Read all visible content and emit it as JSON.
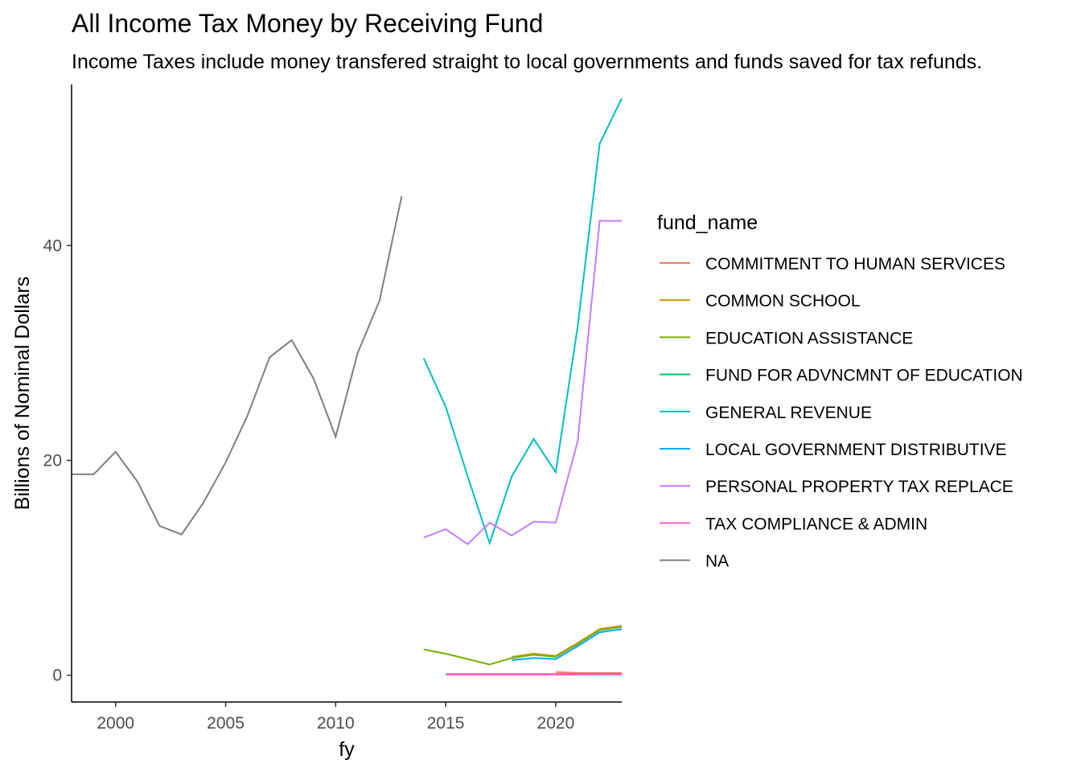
{
  "chart_data": {
    "type": "line",
    "title": "All Income Tax Money by Receiving Fund",
    "subtitle": "Income Taxes include money transfered straight to local governments and funds saved for tax refunds.",
    "xlabel": "fy",
    "ylabel": "Billions of Nominal Dollars",
    "xlim": [
      1998,
      2023
    ],
    "ylim": [
      -2.5,
      55
    ],
    "x_ticks": [
      2000,
      2005,
      2010,
      2015,
      2020
    ],
    "y_ticks": [
      0,
      20,
      40
    ],
    "grid": false,
    "legend_title": "fund_name",
    "legend_position": "right",
    "series": [
      {
        "name": "COMMITMENT TO HUMAN SERVICES",
        "color": "#F8766D",
        "points": [
          [
            2020,
            0.3
          ],
          [
            2021,
            0.2
          ],
          [
            2022,
            0.2
          ],
          [
            2023,
            0.2
          ]
        ]
      },
      {
        "name": "COMMON SCHOOL",
        "color": "#CD9600",
        "points": [
          [
            2018,
            1.7
          ],
          [
            2019,
            2.0
          ],
          [
            2020,
            1.8
          ],
          [
            2021,
            3.0
          ],
          [
            2022,
            4.3
          ],
          [
            2023,
            4.6
          ]
        ]
      },
      {
        "name": "EDUCATION ASSISTANCE",
        "color": "#7CAE00",
        "points": [
          [
            2014,
            2.4
          ],
          [
            2015,
            2.0
          ],
          [
            2016,
            1.5
          ],
          [
            2017,
            1.0
          ],
          [
            2018,
            1.6
          ],
          [
            2019,
            1.9
          ],
          [
            2020,
            1.7
          ],
          [
            2021,
            2.9
          ],
          [
            2022,
            4.2
          ],
          [
            2023,
            4.5
          ]
        ]
      },
      {
        "name": "FUND FOR ADVNCMNT OF EDUCATION",
        "color": "#00BE67",
        "points": [
          [
            2015,
            0.1
          ],
          [
            2016,
            0.1
          ],
          [
            2017,
            0.1
          ],
          [
            2018,
            0.1
          ],
          [
            2019,
            0.1
          ],
          [
            2020,
            0.1
          ],
          [
            2021,
            0.1
          ],
          [
            2022,
            0.1
          ],
          [
            2023,
            0.1
          ]
        ]
      },
      {
        "name": "GENERAL REVENUE",
        "color": "#00BFC4",
        "points": [
          [
            2014,
            29.5
          ],
          [
            2015,
            25.0
          ],
          [
            2016,
            18.5
          ],
          [
            2017,
            12.3
          ],
          [
            2018,
            18.5
          ],
          [
            2019,
            22.0
          ],
          [
            2020,
            18.9
          ],
          [
            2021,
            32.5
          ],
          [
            2022,
            49.5
          ],
          [
            2023,
            53.7
          ]
        ]
      },
      {
        "name": "LOCAL GOVERNMENT DISTRIBUTIVE",
        "color": "#00A9FF",
        "points": [
          [
            2018,
            1.4
          ],
          [
            2019,
            1.6
          ],
          [
            2020,
            1.5
          ],
          [
            2021,
            2.7
          ],
          [
            2022,
            4.0
          ],
          [
            2023,
            4.3
          ]
        ]
      },
      {
        "name": "PERSONAL PROPERTY TAX REPLACE",
        "color": "#C77CFF",
        "points": [
          [
            2014,
            12.8
          ],
          [
            2015,
            13.6
          ],
          [
            2016,
            12.2
          ],
          [
            2017,
            14.2
          ],
          [
            2018,
            13.0
          ],
          [
            2019,
            14.3
          ],
          [
            2020,
            14.2
          ],
          [
            2021,
            21.8
          ],
          [
            2022,
            42.3
          ],
          [
            2023,
            42.3
          ]
        ]
      },
      {
        "name": "TAX COMPLIANCE & ADMIN",
        "color": "#FF61CC",
        "points": [
          [
            2015,
            0.05
          ],
          [
            2016,
            0.05
          ],
          [
            2017,
            0.05
          ],
          [
            2018,
            0.05
          ],
          [
            2019,
            0.05
          ],
          [
            2020,
            0.05
          ],
          [
            2021,
            0.05
          ],
          [
            2022,
            0.05
          ],
          [
            2023,
            0.05
          ]
        ]
      },
      {
        "name": "NA",
        "color": "#7F7F7F",
        "points": [
          [
            1998,
            18.7
          ],
          [
            1999,
            18.7
          ],
          [
            2000,
            20.8
          ],
          [
            2001,
            18.0
          ],
          [
            2002,
            13.9
          ],
          [
            2003,
            13.1
          ],
          [
            2004,
            16.1
          ],
          [
            2005,
            19.8
          ],
          [
            2006,
            24.2
          ],
          [
            2007,
            29.6
          ],
          [
            2008,
            31.2
          ],
          [
            2009,
            27.6
          ],
          [
            2010,
            22.2
          ],
          [
            2011,
            30.0
          ],
          [
            2012,
            34.9
          ],
          [
            2013,
            44.6
          ]
        ]
      }
    ]
  }
}
